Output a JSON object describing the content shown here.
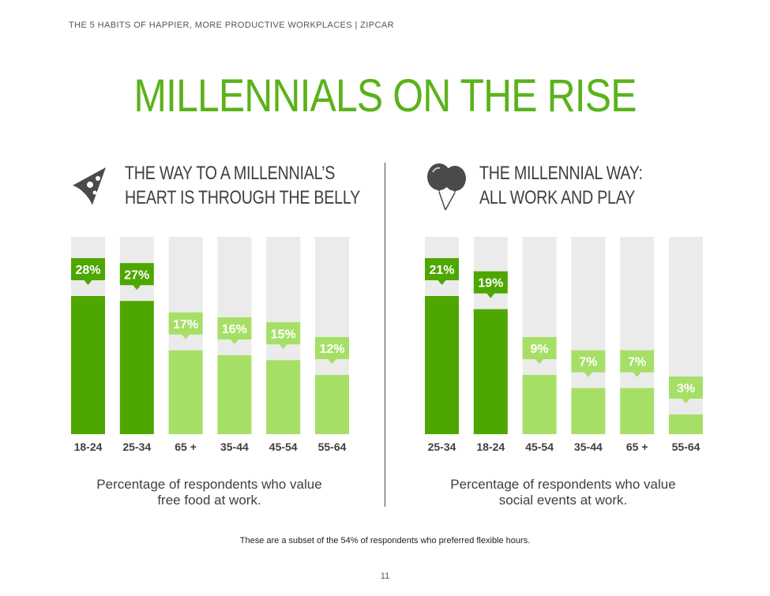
{
  "header": {
    "text": "THE 5 HABITS OF HAPPIER, MORE PRODUCTIVE WORKPLACES  |  ZIPCAR"
  },
  "title": "MILLENNIALS ON THE RISE",
  "panels": [
    {
      "heading_line1": "THE WAY TO A MILLENNIAL’S",
      "heading_line2": "HEART IS THROUGH THE BELLY",
      "icon": "pizza-slice-icon",
      "caption_line1": "Percentage of respondents who value",
      "caption_line2": "free food at work."
    },
    {
      "heading_line1": "THE MILLENNIAL WAY:",
      "heading_line2": "ALL WORK AND PLAY",
      "icon": "balloons-icon",
      "caption_line1": "Percentage of respondents who value",
      "caption_line2": "social events at work."
    }
  ],
  "chart_data": [
    {
      "type": "bar",
      "categories": [
        "18-24",
        "25-34",
        "65 +",
        "35-44",
        "45-54",
        "55-64"
      ],
      "values": [
        28,
        27,
        17,
        16,
        15,
        12
      ],
      "data_labels": [
        "28%",
        "27%",
        "17%",
        "16%",
        "15%",
        "12%"
      ],
      "highlight": [
        true,
        true,
        false,
        false,
        false,
        false
      ],
      "ylim": [
        0,
        40
      ],
      "colors": {
        "highlight": "#4ea600",
        "normal": "#a6df66",
        "track": "#ebebeb"
      }
    },
    {
      "type": "bar",
      "categories": [
        "25-34",
        "18-24",
        "45-54",
        "35-44",
        "65 +",
        "55-64"
      ],
      "values": [
        21,
        19,
        9,
        7,
        7,
        3
      ],
      "data_labels": [
        "21%",
        "19%",
        "9%",
        "7%",
        "7%",
        "3%"
      ],
      "highlight": [
        true,
        true,
        false,
        false,
        false,
        false
      ],
      "ylim": [
        0,
        30
      ],
      "colors": {
        "highlight": "#4ea600",
        "normal": "#a6df66",
        "track": "#ebebeb"
      }
    }
  ],
  "footnote": "These are a subset of the 54% of respondents who preferred flexible hours.",
  "page_number": "11",
  "colors": {
    "title": "#5bb21a",
    "text": "#3f3f3f",
    "icon": "#4a4a4a"
  }
}
